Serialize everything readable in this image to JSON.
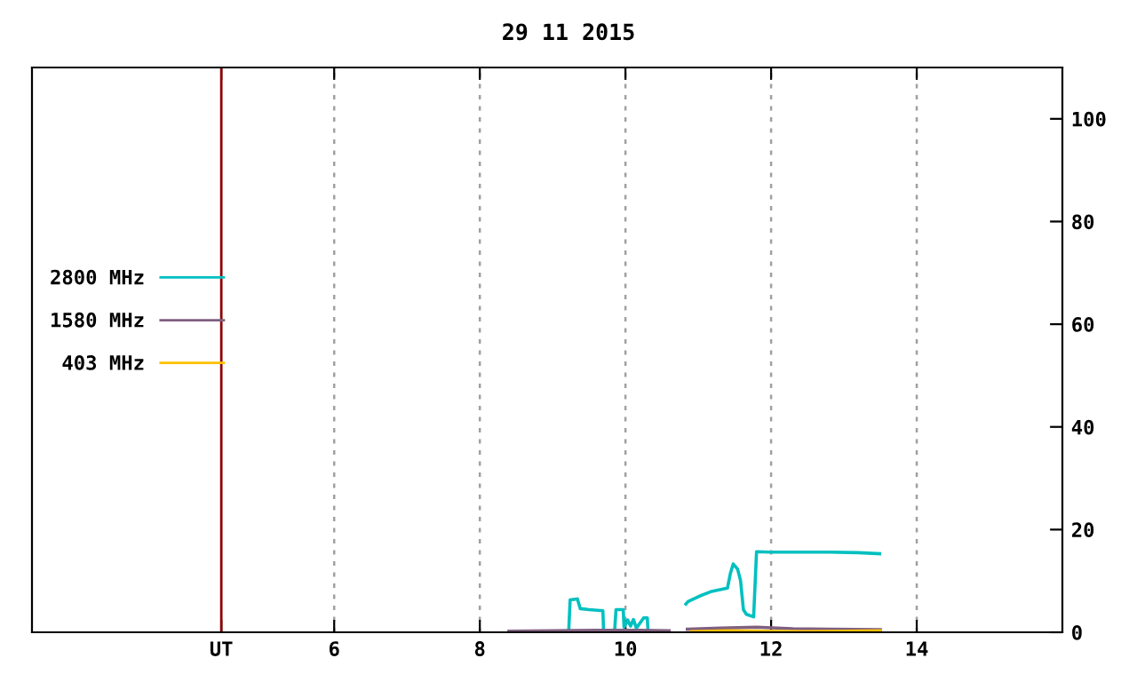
{
  "chart_data": {
    "type": "line",
    "title": "29 11 2015",
    "xlim": [
      1.85,
      16
    ],
    "xticks": [
      {
        "value": 4.45,
        "label": "UT"
      },
      6,
      8,
      10,
      12,
      14
    ],
    "ylim": [
      0,
      110
    ],
    "yticks": [
      0,
      20,
      40,
      60,
      80,
      100
    ],
    "grid": "x",
    "legend": "left",
    "line_style": "solid",
    "marker": "none",
    "ref_lines": [
      {
        "axis": "x",
        "value": 4.45,
        "label": null,
        "color": "#8b0000",
        "line_style": "solid"
      }
    ],
    "series": [
      {
        "name": "2800 MHz",
        "color": "#00c0c0",
        "x": [
          9.22,
          9.24,
          9.34,
          9.38,
          9.5,
          9.69,
          9.7,
          null,
          9.85,
          9.87,
          9.97,
          9.98,
          10.03,
          10.07,
          10.11,
          10.15,
          10.25,
          10.3,
          10.31,
          null,
          10.83,
          10.86,
          11.01,
          11.17,
          11.4,
          11.44,
          11.48,
          11.54,
          11.58,
          11.62,
          11.66,
          11.76,
          11.8,
          11.98,
          12.39,
          12.8,
          13.2,
          13.49
        ],
        "values": [
          0,
          6.3,
          6.5,
          4.6,
          4.4,
          4.2,
          0,
          null,
          0,
          4.4,
          4.4,
          1.0,
          2.4,
          1.2,
          2.5,
          0.8,
          2.8,
          2.8,
          0,
          null,
          5.5,
          6.0,
          7.0,
          7.9,
          8.6,
          11.4,
          13.3,
          12.3,
          10.1,
          4.4,
          3.5,
          3.0,
          15.7,
          15.6,
          15.6,
          15.6,
          15.5,
          15.3
        ]
      },
      {
        "name": "1580 MHz",
        "color": "#806080",
        "x": [
          8.4,
          9.0,
          9.6,
          10.2,
          10.6,
          null,
          10.85,
          11.3,
          11.8,
          12.3,
          12.8,
          13.5
        ],
        "values": [
          0.2,
          0.3,
          0.4,
          0.4,
          0.3,
          null,
          0.6,
          0.8,
          1.0,
          0.7,
          0.6,
          0.5
        ]
      },
      {
        "name": "403 MHz",
        "color": "#ffc000",
        "x": [
          10.9,
          11.4,
          11.9,
          12.4,
          13.0,
          13.5
        ],
        "values": [
          0.1,
          0.3,
          0.2,
          0.1,
          0.2,
          0.3
        ]
      }
    ]
  }
}
